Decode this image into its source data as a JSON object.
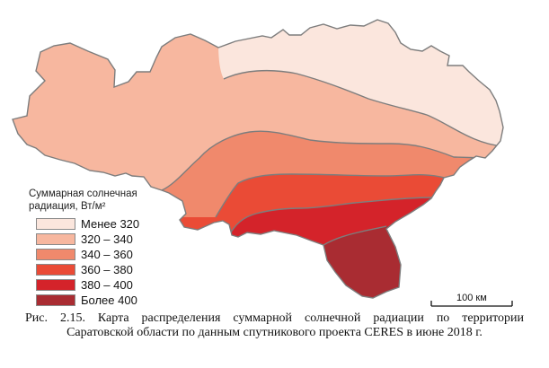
{
  "map": {
    "zones": [
      {
        "id": "lt320",
        "color": "#fbe6dd"
      },
      {
        "id": "320-340",
        "color": "#f7b79f"
      },
      {
        "id": "340-360",
        "color": "#f0896c"
      },
      {
        "id": "360-380",
        "color": "#ea4b36"
      },
      {
        "id": "380-400",
        "color": "#d4232a"
      },
      {
        "id": "gt400",
        "color": "#a92c32"
      }
    ],
    "border_color": "#7d7d7d"
  },
  "legend": {
    "title_line1": "Суммарная солнечная",
    "title_line2": "радиация, Вт/м²",
    "items": [
      {
        "label": "Менее 320",
        "color": "#fbe6dd"
      },
      {
        "label": "320 – 340",
        "color": "#f7b79f"
      },
      {
        "label": "340 – 360",
        "color": "#f0896c"
      },
      {
        "label": "360 – 380",
        "color": "#ea4b36"
      },
      {
        "label": "380 – 400",
        "color": "#d4232a"
      },
      {
        "label": "Более 400",
        "color": "#a92c32"
      }
    ]
  },
  "scale_bar": {
    "label": "100 км"
  },
  "caption": {
    "line1": "Рис. 2.15. Карта распределения суммарной солнечной радиации по территории",
    "line2": "Саратовской области по данным спутникового проекта CERES в июне 2018 г."
  }
}
